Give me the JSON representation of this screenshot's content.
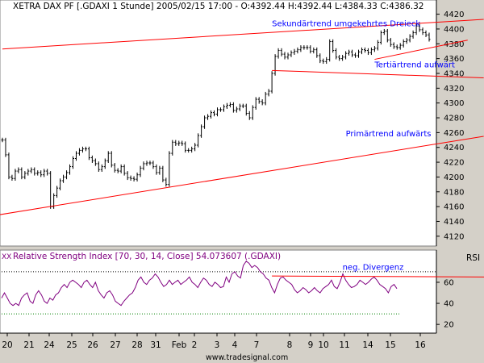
{
  "header": {
    "title": "XETRA DAX PF [.GDAXI  1 Stunde] 2005/02/15 17:00 - O:4392.44 H:4392.44 L:4384.33 C:4386.32"
  },
  "footer": {
    "credit": "www.tradesignal.com"
  },
  "colors": {
    "background": "#d4d0c8",
    "panel": "#ffffff",
    "candles": "#000000",
    "trendlines": "#ff0000",
    "rsi": "#800080",
    "annotation": "#0000ff",
    "overbought_line": "#000000",
    "oversold_line": "#008000"
  },
  "x_axis": {
    "labels": [
      "20",
      "21",
      "24",
      "25",
      "26",
      "27",
      "28",
      "31",
      "Feb",
      "2",
      "3",
      "4",
      "7",
      "8",
      "9",
      "10",
      "11",
      "14",
      "15",
      "16"
    ]
  },
  "chart_data": [
    {
      "type": "ohlc",
      "title": "XETRA DAX PF [.GDAXI  1 Stunde] 2005/02/15 17:00 - O:4392.44 H:4392.44 L:4384.33 C:4386.32",
      "ylim": [
        4110,
        4425
      ],
      "yticks": [
        4120,
        4140,
        4160,
        4180,
        4200,
        4220,
        4240,
        4260,
        4280,
        4300,
        4320,
        4340,
        4360,
        4380,
        4400,
        4420
      ],
      "last_bar": {
        "time": "2005/02/15 17:00",
        "open": 4392.44,
        "high": 4392.44,
        "low": 4384.33,
        "close": 4386.32
      },
      "series": [
        {
          "type": "line",
          "values": [
            4250,
            4230,
            4200,
            4198,
            4208,
            4210,
            4200,
            4205,
            4208,
            4210,
            4205,
            4206,
            4203,
            4208,
            4205,
            4160,
            4175,
            4185,
            4195,
            4200,
            4206,
            4214,
            4225,
            4232,
            4236,
            4238,
            4238,
            4226,
            4222,
            4218,
            4210,
            4214,
            4222,
            4232,
            4216,
            4209,
            4208,
            4214,
            4205,
            4199,
            4198,
            4197,
            4203,
            4212,
            4218,
            4219,
            4219,
            4214,
            4206,
            4212,
            4196,
            4190,
            4232,
            4247,
            4245,
            4246,
            4245,
            4236,
            4236,
            4238,
            4243,
            4256,
            4268,
            4280,
            4282,
            4287,
            4285,
            4291,
            4291,
            4295,
            4297,
            4298,
            4290,
            4292,
            4296,
            4296,
            4286,
            4280,
            4294,
            4305,
            4302,
            4300,
            4312,
            4316,
            4340,
            4363,
            4371,
            4366,
            4362,
            4365,
            4368,
            4370,
            4372,
            4375,
            4375,
            4375,
            4370,
            4372,
            4364,
            4357,
            4356,
            4359,
            4383,
            4371,
            4362,
            4360,
            4362,
            4367,
            4369,
            4365,
            4364,
            4369,
            4372,
            4371,
            4368,
            4372,
            4374,
            4382,
            4395,
            4397,
            4385,
            4379,
            4376,
            4375,
            4378,
            4383,
            4385,
            4390,
            4395,
            4404,
            4399,
            4395,
            4392,
            4386
          ]
        }
      ],
      "trendlines": [
        {
          "name": "Sekundärtrend upper",
          "points": [
            [
              0,
              4373
            ],
            [
              150,
              4413
            ]
          ]
        },
        {
          "name": "Sekundärtrend lower",
          "points": [
            [
              116,
              4359
            ],
            [
              145,
              4385
            ]
          ]
        },
        {
          "name": "Tertiärtrend",
          "points": [
            [
              84,
              4344
            ],
            [
              150,
              4334
            ]
          ]
        },
        {
          "name": "Primärtrend",
          "points": [
            [
              -1,
              4149
            ],
            [
              150,
              4255
            ]
          ]
        }
      ],
      "annotations": [
        {
          "text": "Sekundärtrend umgekehrtes Dreieck",
          "x": 84,
          "y": 4404
        },
        {
          "text": "Tertiärtrend aufwärt",
          "x": 116,
          "y": 4348
        },
        {
          "text": "Primärtrend aufwärts",
          "x": 107,
          "y": 4255
        }
      ]
    },
    {
      "type": "line",
      "title": "Relative Strength Index [70, 30, 14, Close] 54.073607 (.GDAXI)",
      "ylim": [
        14,
        86
      ],
      "yticks": [
        20,
        40,
        60
      ],
      "ylabel": "RSI",
      "levels": [
        70,
        30
      ],
      "series": [
        {
          "name": "Relative Strength Index",
          "values": [
            45,
            50,
            45,
            40,
            38,
            40,
            38,
            45,
            48,
            50,
            42,
            40,
            48,
            52,
            48,
            42,
            40,
            45,
            43,
            48,
            50,
            55,
            58,
            55,
            60,
            62,
            60,
            58,
            55,
            60,
            62,
            58,
            55,
            60,
            52,
            48,
            45,
            50,
            52,
            48,
            42,
            40,
            38,
            42,
            45,
            48,
            50,
            55,
            62,
            65,
            60,
            58,
            62,
            64,
            68,
            65,
            60,
            56,
            58,
            62,
            58,
            60,
            62,
            58,
            60,
            62,
            65,
            60,
            58,
            55,
            60,
            64,
            62,
            58,
            56,
            60,
            58,
            55,
            56,
            65,
            60,
            68,
            70,
            66,
            64,
            76,
            80,
            78,
            74,
            76,
            74,
            70,
            68,
            64,
            62,
            55,
            50,
            58,
            64,
            65,
            62,
            60,
            58,
            53,
            50,
            52,
            55,
            53,
            50,
            52,
            55,
            52,
            50,
            54,
            56,
            58,
            62,
            56,
            54,
            60,
            68,
            62,
            58,
            55,
            56,
            58,
            62,
            60,
            58,
            60,
            63,
            65,
            62,
            58,
            56,
            54,
            50,
            56,
            58,
            54
          ]
        }
      ],
      "trendlines": [
        {
          "name": "neg. Divergenz",
          "points": [
            [
              84,
              66
            ],
            [
              153,
              65
            ]
          ]
        }
      ],
      "annotations": [
        {
          "text": "neg. Divergenz",
          "x": 106,
          "y": 72
        }
      ]
    }
  ]
}
